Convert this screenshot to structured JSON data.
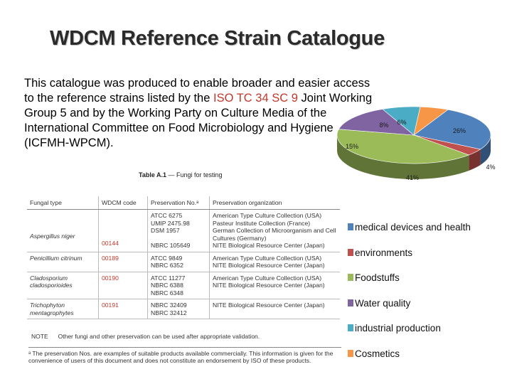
{
  "title": "WDCM Reference Strain Catalogue",
  "intro": {
    "part1": "This catalogue was produced to enable broader and easier access to the reference strains listed by the ",
    "highlight": "ISO TC 34 SC 9",
    "part2": " Joint Working Group 5 and by the Working Party on Culture Media of the International Committee on Food Microbiology and Hygiene (ICFMH-WPCM)."
  },
  "table": {
    "caption_bold": "Table A.1",
    "caption_rest": " — Fungi for testing",
    "headers": [
      "Fungal type",
      "WDCM code",
      "Preservation No.ᵃ",
      "Preservation organization"
    ],
    "rows": [
      {
        "type": "Aspergillus niger",
        "code": "00144",
        "nos": [
          "ATCC 6275",
          "UMIP 2475.98",
          "DSM 1957",
          "NBRC 105649"
        ],
        "orgs": [
          "American Type Culture Collection (USA)",
          "Pasteur Institute Collection (France)",
          "German Collection of Microorganism and Cell Cultures (Germany)",
          "NITE Biological Resource Center (Japan)"
        ]
      },
      {
        "type": "Penicillium citrinum",
        "code": "00189",
        "nos": [
          "ATCC 9849",
          "NBRC 6352"
        ],
        "orgs": [
          "American Type Culture Collection (USA)",
          "NITE Biological Resource Center (Japan)"
        ]
      },
      {
        "type": "Cladosporium cladosporioides",
        "code": "00190",
        "nos": [
          "ATCC 11277",
          "NBRC 6388",
          "NBRC 6348"
        ],
        "orgs": [
          "American Type Culture Collection (USA)",
          "NITE Biological Resource Center (Japan)"
        ]
      },
      {
        "type": "Trichophyton mentagrophytes",
        "code": "00191",
        "nos": [
          "NBRC 32409",
          "NBRC 32412"
        ],
        "orgs": [
          "NITE Biological Resource Center (Japan)"
        ]
      }
    ],
    "note_key": "NOTE",
    "note_text": "Other fungi and other preservation can be used after appropriate validation.",
    "footnote": "ᵃ  The preservation Nos. are examples of suitable products available commercially. This information is given for the convenience of users of this document and does not constitute an endorsement by ISO of these products."
  },
  "chart_data": {
    "type": "pie",
    "title": "",
    "slices": [
      {
        "name": "medical devices and health",
        "value": 26,
        "label": "26%",
        "color": "#4f81bd"
      },
      {
        "name": "environments",
        "value": 4,
        "label": "4%",
        "color": "#c0504d"
      },
      {
        "name": "Foodstuffs",
        "value": 41,
        "label": "41%",
        "color": "#9bbb59"
      },
      {
        "name": "Water quality",
        "value": 15,
        "label": "15%",
        "color": "#8064a2"
      },
      {
        "name": "industrial production",
        "value": 8,
        "label": "8%",
        "color": "#4bacc6"
      },
      {
        "name": "Cosmetics",
        "value": 6,
        "label": "6%",
        "color": "#f79646"
      }
    ],
    "legend_position": "right"
  }
}
